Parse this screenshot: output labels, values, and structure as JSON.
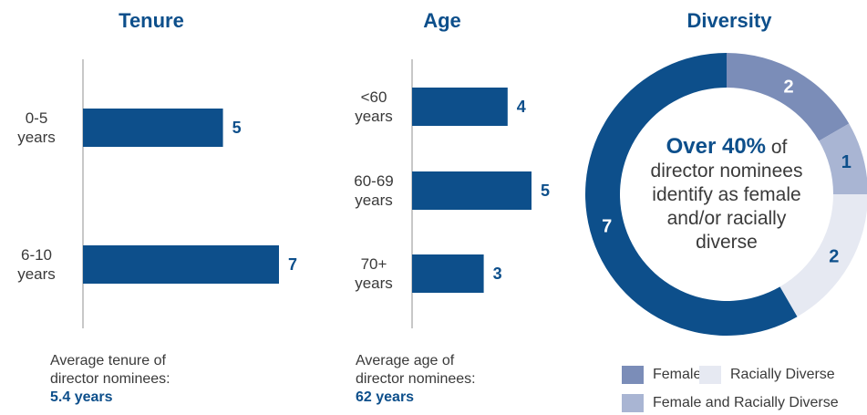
{
  "chart_data": [
    {
      "type": "hbar",
      "title": "Tenure",
      "categories": [
        "0-5 years",
        "6-10 years"
      ],
      "values": [
        5,
        7
      ],
      "color": "#0d4f8b",
      "note": "Average tenure of director nominees:",
      "note_value": "5.4 years"
    },
    {
      "type": "hbar",
      "title": "Age",
      "categories": [
        "<60 years",
        "60-69 years",
        "70+ years"
      ],
      "values": [
        4,
        5,
        3
      ],
      "color": "#0d4f8b",
      "note": "Average age of director nominees:",
      "note_value": "62 years"
    },
    {
      "type": "donut",
      "title": "Diversity",
      "categories": [
        "Female",
        "Female and Racially Diverse",
        "Racially Diverse",
        null
      ],
      "values": [
        2,
        1,
        2,
        7
      ],
      "colors": [
        "#7b8db8",
        "#a9b5d3",
        "#e6e9f2",
        "#0d4f8b"
      ],
      "center_text_bold": "Over 40%",
      "center_text": "of director nominees identify as female and/or racially diverse"
    }
  ]
}
